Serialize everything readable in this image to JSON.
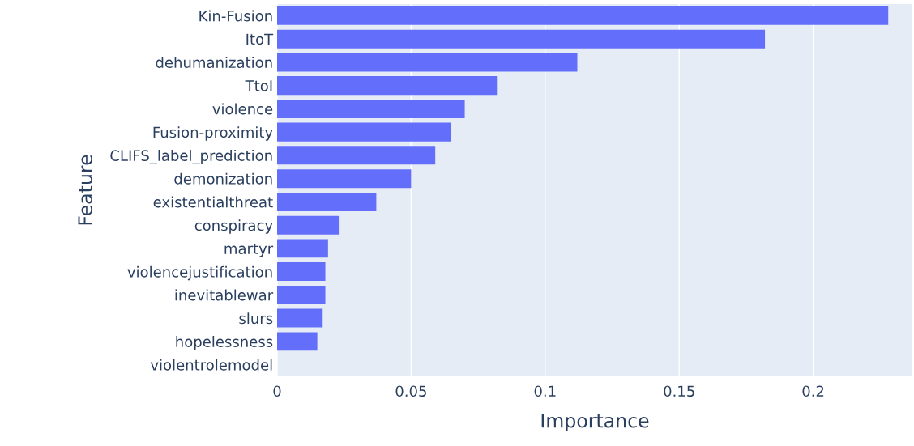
{
  "chart_data": {
    "type": "bar",
    "orientation": "horizontal",
    "xlabel": "Importance",
    "ylabel": "Feature",
    "categories": [
      "Kin-Fusion",
      "ItoT",
      "dehumanization",
      "TtoI",
      "violence",
      "Fusion-proximity",
      "CLIFS_label_prediction",
      "demonization",
      "existentialthreat",
      "conspiracy",
      "martyr",
      "violencejustification",
      "inevitablewar",
      "slurs",
      "hopelessness",
      "violentrolemodel"
    ],
    "values": [
      0.228,
      0.182,
      0.112,
      0.082,
      0.07,
      0.065,
      0.059,
      0.05,
      0.037,
      0.023,
      0.019,
      0.018,
      0.018,
      0.017,
      0.015,
      0
    ],
    "color": "#636efa",
    "xlim": [
      0,
      0.237
    ],
    "xticks": [
      0,
      0.05,
      0.1,
      0.15,
      0.2
    ],
    "grid": "x"
  }
}
